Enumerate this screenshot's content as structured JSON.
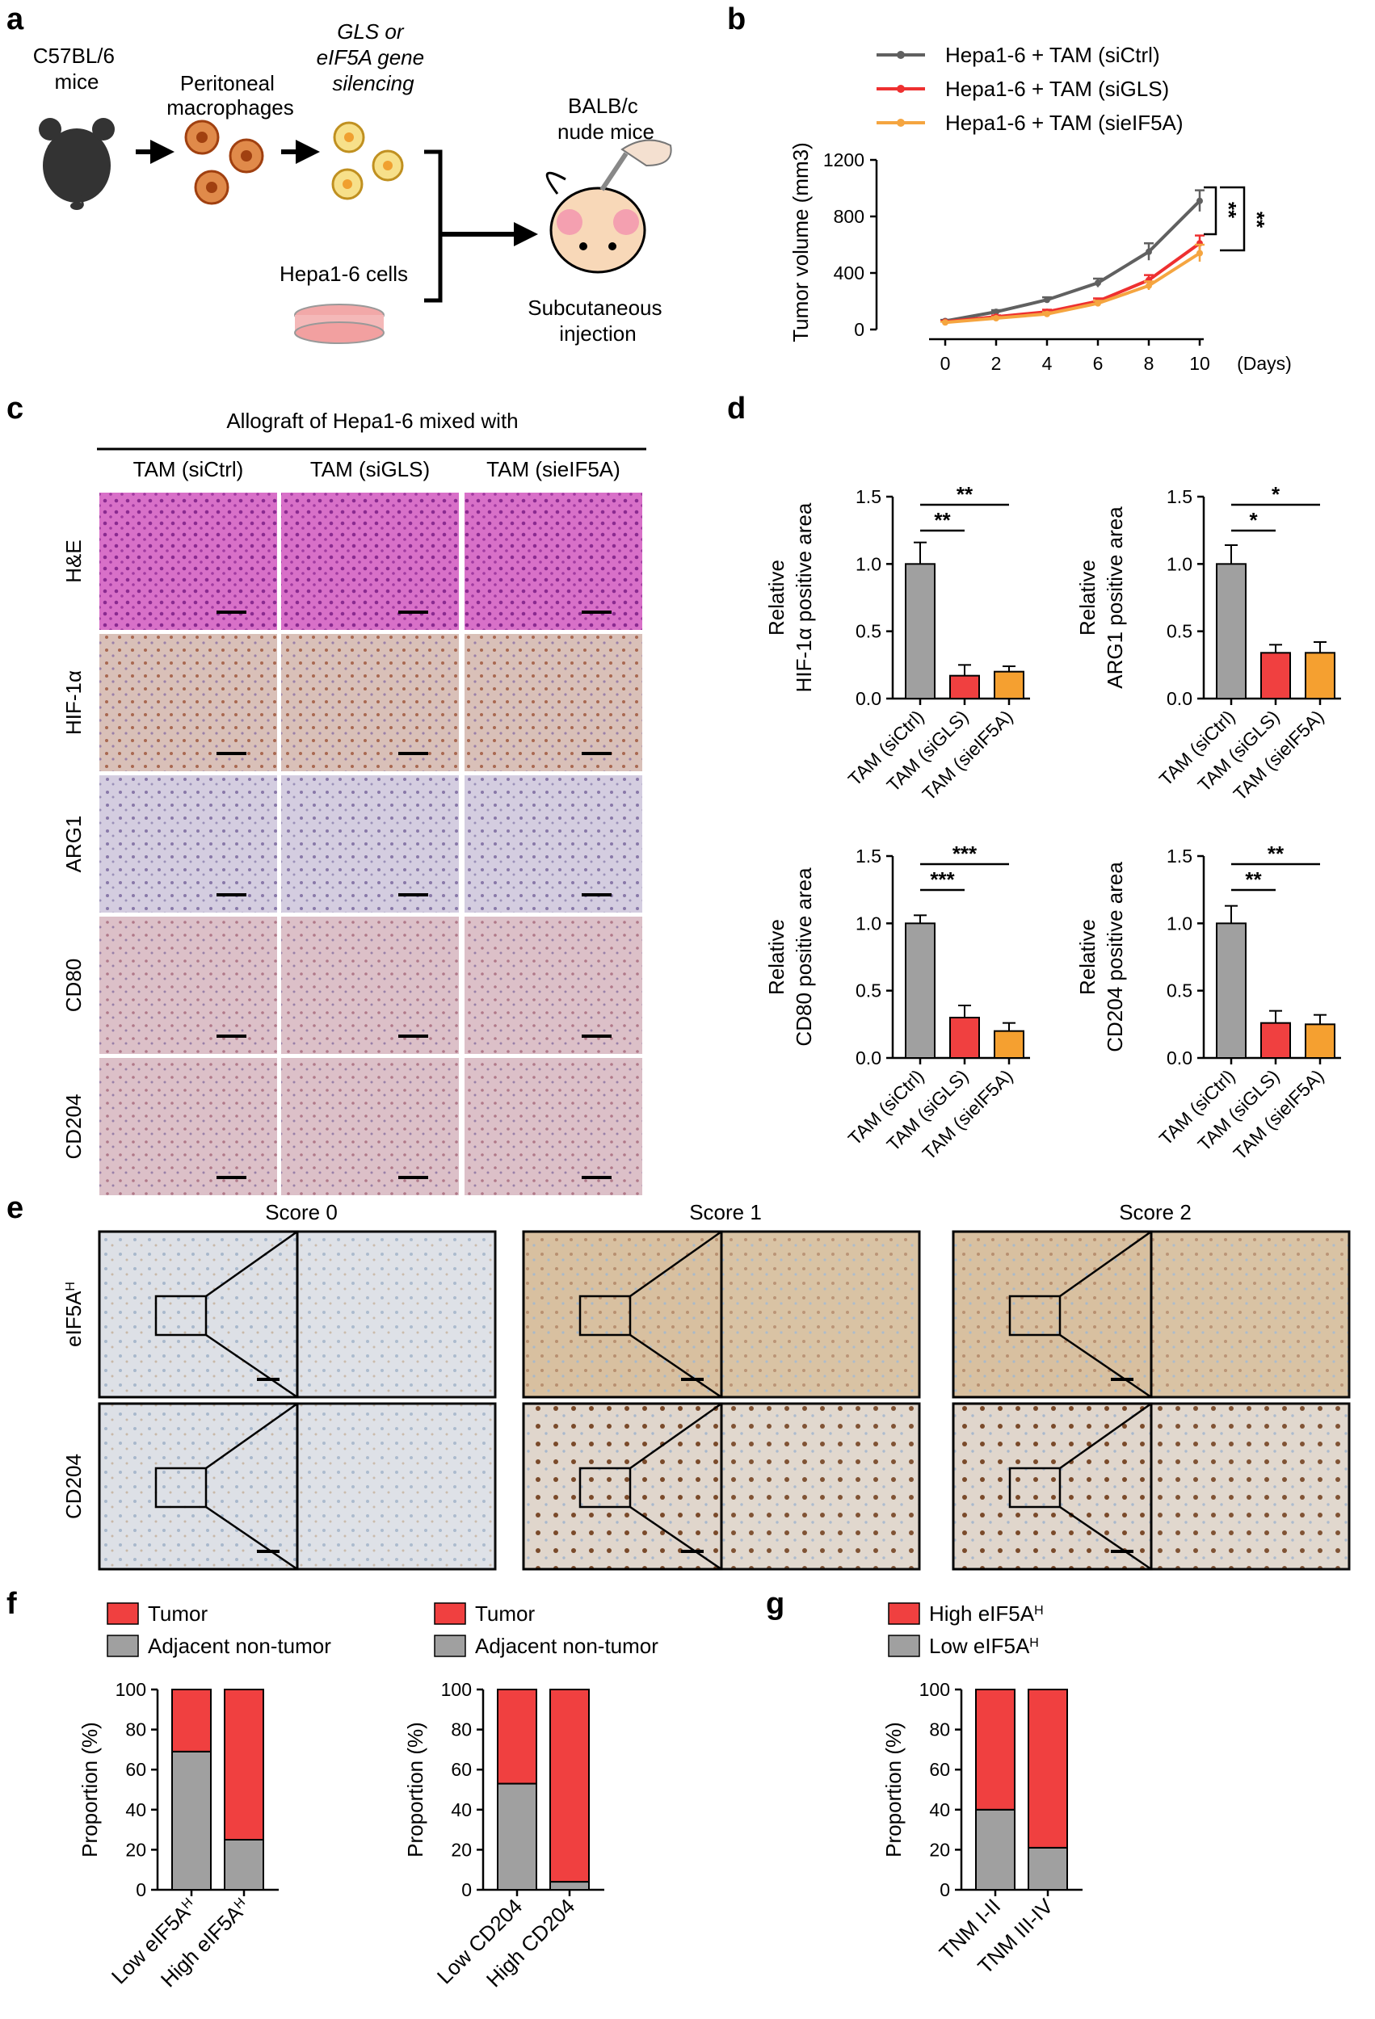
{
  "panels": {
    "a": "a",
    "b": "b",
    "c": "c",
    "d": "d",
    "e": "e",
    "f": "f",
    "g": "g"
  },
  "schematic": {
    "mouse1": "C57BL/6\nmice",
    "macrophages": "Peritoneal\nmacrophages",
    "silencing": "GLS or\neIF5A gene\nsilencing",
    "hepa_cells": "Hepa1-6 cells",
    "mouse2": "BALB/c\nnude mice",
    "injection": "Subcutaneous\ninjection"
  },
  "colors": {
    "ctrl": "#a0a0a0",
    "gls": "#f04040",
    "eif5a": "#f5a030",
    "line_ctrl": "#606060",
    "line_gls": "#ee3030",
    "line_eif5a": "#f5a540",
    "adjacent": "#a0a0a0",
    "tumor": "#f04040"
  },
  "panel_c": {
    "header": "Allograft of Hepa1-6 mixed with",
    "columns": [
      "TAM (siCtrl)",
      "TAM (siGLS)",
      "TAM (sieIF5A)"
    ],
    "rows": [
      "H&E",
      "HIF-1α",
      "ARG1",
      "CD80",
      "CD204"
    ]
  },
  "panel_e": {
    "columns": [
      "Score 0",
      "Score 1",
      "Score 2"
    ],
    "rows": [
      "eIF5AH",
      "CD204"
    ]
  },
  "chart_data": [
    {
      "id": "b",
      "type": "line",
      "x": [
        0,
        2,
        4,
        6,
        8,
        10
      ],
      "xlabel": "(Days)",
      "ylabel": "Tumor volume (mm3)",
      "ylim": [
        0,
        1200
      ],
      "yticks": [
        0,
        400,
        800,
        1200
      ],
      "series": [
        {
          "name": "Hepa1-6 + TAM (siCtrl)",
          "values": [
            60,
            125,
            210,
            330,
            550,
            910
          ],
          "err": [
            8,
            12,
            18,
            30,
            60,
            75
          ]
        },
        {
          "name": "Hepa1-6 + TAM (siGLS)",
          "values": [
            55,
            90,
            125,
            200,
            350,
            610
          ],
          "err": [
            6,
            10,
            15,
            20,
            35,
            55
          ]
        },
        {
          "name": "Hepa1-6 + TAM (sieIF5A)",
          "values": [
            50,
            80,
            110,
            185,
            310,
            540
          ],
          "err": [
            5,
            8,
            12,
            18,
            30,
            60
          ]
        }
      ],
      "significance": [
        "**",
        "**"
      ]
    },
    {
      "id": "d1",
      "type": "bar",
      "categories": [
        "TAM (siCtrl)",
        "TAM (siGLS)",
        "TAM (sieIF5A)"
      ],
      "values": [
        1.0,
        0.17,
        0.2
      ],
      "err": [
        0.16,
        0.08,
        0.04
      ],
      "ylabel": "Relative\nHIF-1α positive area",
      "ylim": [
        0,
        1.5
      ],
      "yticks": [
        "0.0",
        "0.5",
        "1.0",
        "1.5"
      ],
      "significance": [
        "**",
        "**"
      ]
    },
    {
      "id": "d2",
      "type": "bar",
      "categories": [
        "TAM (siCtrl)",
        "TAM (siGLS)",
        "TAM (sieIF5A)"
      ],
      "values": [
        1.0,
        0.34,
        0.34
      ],
      "err": [
        0.14,
        0.06,
        0.08
      ],
      "ylabel": "Relative\nARG1 positive area",
      "ylim": [
        0,
        1.5
      ],
      "yticks": [
        "0.0",
        "0.5",
        "1.0",
        "1.5"
      ],
      "significance": [
        "*",
        "*"
      ]
    },
    {
      "id": "d3",
      "type": "bar",
      "categories": [
        "TAM (siCtrl)",
        "TAM (siGLS)",
        "TAM (sieIF5A)"
      ],
      "values": [
        1.0,
        0.3,
        0.2
      ],
      "err": [
        0.06,
        0.09,
        0.06
      ],
      "ylabel": "Relative\nCD80 positive area",
      "ylim": [
        0,
        1.5
      ],
      "yticks": [
        "0.0",
        "0.5",
        "1.0",
        "1.5"
      ],
      "significance": [
        "***",
        "***"
      ]
    },
    {
      "id": "d4",
      "type": "bar",
      "categories": [
        "TAM (siCtrl)",
        "TAM (siGLS)",
        "TAM (sieIF5A)"
      ],
      "values": [
        1.0,
        0.26,
        0.25
      ],
      "err": [
        0.13,
        0.09,
        0.07
      ],
      "ylabel": "Relative\nCD204 positive area",
      "ylim": [
        0,
        1.5
      ],
      "yticks": [
        "0.0",
        "0.5",
        "1.0",
        "1.5"
      ],
      "significance": [
        "**",
        "**"
      ]
    },
    {
      "id": "f1",
      "type": "bar",
      "categories": [
        "Low eIF5AH",
        "High eIF5AH"
      ],
      "series": [
        {
          "name": "Adjacent non-tumor",
          "values": [
            69,
            25
          ]
        },
        {
          "name": "Tumor",
          "values": [
            31,
            75
          ]
        }
      ],
      "ylabel": "Proportion (%)",
      "ylim": [
        0,
        100
      ],
      "yticks": [
        "0",
        "20",
        "40",
        "60",
        "80",
        "100"
      ]
    },
    {
      "id": "f2",
      "type": "bar",
      "categories": [
        "Low CD204",
        "High CD204"
      ],
      "series": [
        {
          "name": "Adjacent non-tumor",
          "values": [
            53,
            4
          ]
        },
        {
          "name": "Tumor",
          "values": [
            47,
            96
          ]
        }
      ],
      "ylabel": "Proportion (%)",
      "ylim": [
        0,
        100
      ],
      "yticks": [
        "0",
        "20",
        "40",
        "60",
        "80",
        "100"
      ]
    },
    {
      "id": "g",
      "type": "bar",
      "categories": [
        "TNM I-II",
        "TNM III-IV"
      ],
      "series": [
        {
          "name": "Low eIF5AH",
          "values": [
            40,
            21
          ]
        },
        {
          "name": "High eIF5AH",
          "values": [
            60,
            79
          ]
        }
      ],
      "ylabel": "Proportion (%)",
      "ylim": [
        0,
        100
      ],
      "yticks": [
        "0",
        "20",
        "40",
        "60",
        "80",
        "100"
      ]
    }
  ]
}
